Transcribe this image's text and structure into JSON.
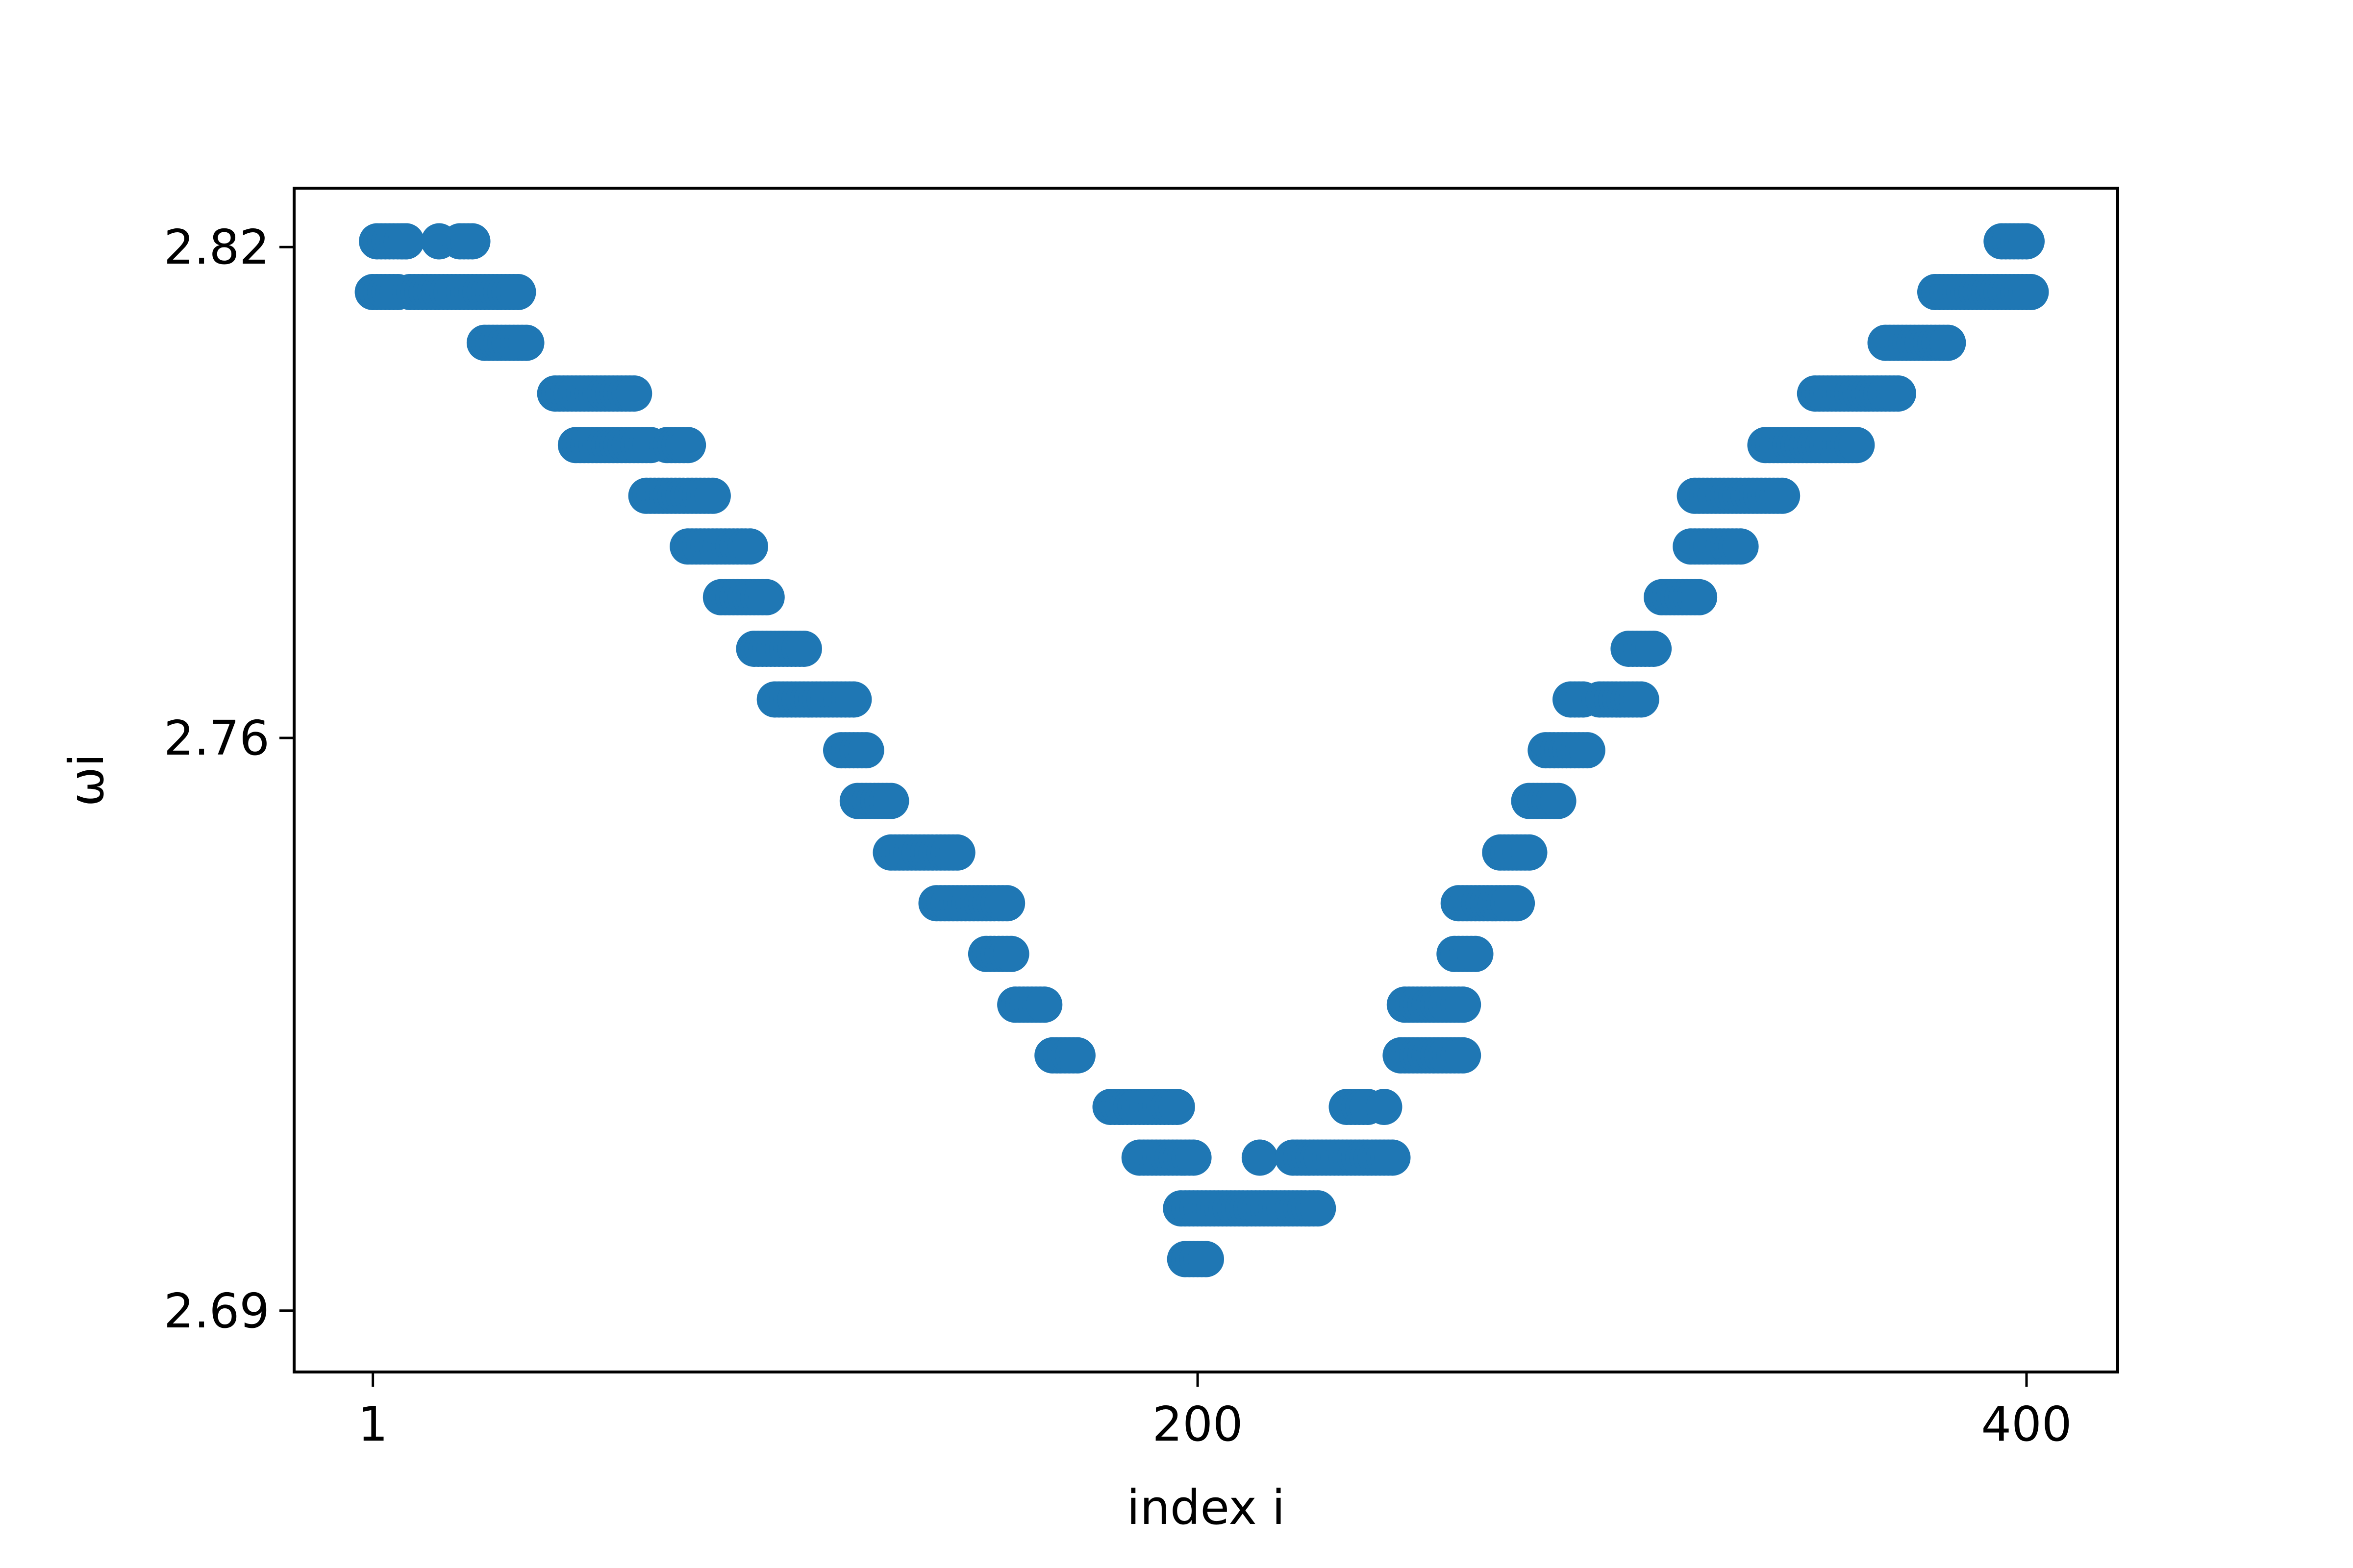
{
  "chart_data": {
    "type": "scatter",
    "title": "",
    "xlabel": "index i",
    "ylabel": "ωi",
    "xlim": [
      -18,
      422
    ],
    "ylim": [
      2.6825,
      2.8272
    ],
    "xticks": [
      1,
      200,
      400
    ],
    "xtick_labels": [
      "1",
      "200",
      "400"
    ],
    "yticks": [
      2.69,
      2.76,
      2.82
    ],
    "ytick_labels": [
      "2.69",
      "2.76",
      "2.82"
    ],
    "grid": false,
    "legend": "none",
    "marker_color": "#1f77b4",
    "series": [
      {
        "runs": [
          [
            1,
            7,
            2.8145
          ],
          [
            2,
            9,
            2.8207
          ],
          [
            8,
            9,
            2.8207
          ],
          [
            10,
            36,
            2.8145
          ],
          [
            17,
            17,
            2.8207
          ],
          [
            22,
            25,
            2.8207
          ],
          [
            28,
            38,
            2.8083
          ],
          [
            45,
            64,
            2.8021
          ],
          [
            50,
            68,
            2.7958
          ],
          [
            72,
            77,
            2.7958
          ],
          [
            67,
            83,
            2.7896
          ],
          [
            77,
            92,
            2.7834
          ],
          [
            85,
            96,
            2.7772
          ],
          [
            93,
            105,
            2.7709
          ],
          [
            98,
            117,
            2.7647
          ],
          [
            114,
            120,
            2.7585
          ],
          [
            118,
            126,
            2.7523
          ],
          [
            126,
            142,
            2.746
          ],
          [
            137,
            154,
            2.7398
          ],
          [
            149,
            155,
            2.7336
          ],
          [
            156,
            163,
            2.7274
          ],
          [
            165,
            171,
            2.7212
          ],
          [
            179,
            188,
            2.7149
          ],
          [
            189,
            195,
            2.7149
          ],
          [
            186,
            199,
            2.7087
          ],
          [
            196,
            229,
            2.7025
          ],
          [
            197,
            202,
            2.6963
          ],
          [
            215,
            215,
            2.7087
          ],
          [
            223,
            247,
            2.7087
          ],
          [
            236,
            241,
            2.7149
          ],
          [
            245,
            245,
            2.7149
          ],
          [
            249,
            264,
            2.7212
          ],
          [
            250,
            264,
            2.7274
          ],
          [
            262,
            267,
            2.7336
          ],
          [
            263,
            277,
            2.7398
          ],
          [
            273,
            280,
            2.746
          ],
          [
            280,
            287,
            2.7523
          ],
          [
            284,
            294,
            2.7585
          ],
          [
            290,
            293,
            2.7647
          ],
          [
            297,
            307,
            2.7647
          ],
          [
            304,
            310,
            2.7709
          ],
          [
            312,
            321,
            2.7772
          ],
          [
            319,
            331,
            2.7834
          ],
          [
            320,
            341,
            2.7896
          ],
          [
            337,
            349,
            2.7958
          ],
          [
            350,
            359,
            2.7958
          ],
          [
            349,
            369,
            2.8021
          ],
          [
            366,
            381,
            2.8083
          ],
          [
            378,
            401,
            2.8145
          ],
          [
            394,
            400,
            2.8207
          ]
        ]
      }
    ]
  }
}
